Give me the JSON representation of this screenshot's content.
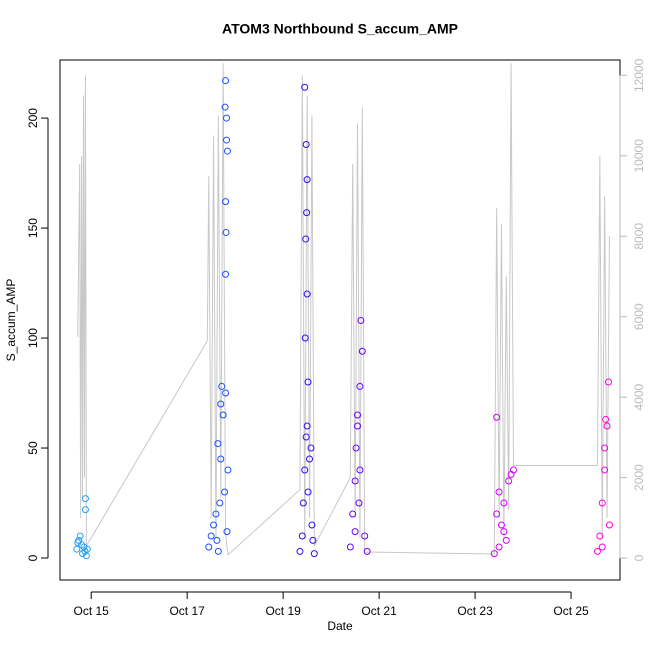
{
  "chart_data": {
    "type": "scatter",
    "title": "ATOM3 Northbound S_accum_AMP",
    "xlabel": "Date",
    "ylabel": "S_accum_AMP",
    "xlim": [
      14.35,
      26.02
    ],
    "xticks": [
      {
        "value": 15,
        "label": "Oct 15"
      },
      {
        "value": 17,
        "label": "Oct 17"
      },
      {
        "value": 19,
        "label": "Oct 19"
      },
      {
        "value": 21,
        "label": "Oct 21"
      },
      {
        "value": 23,
        "label": "Oct 23"
      },
      {
        "value": 25,
        "label": "Oct 25"
      }
    ],
    "ylim": [
      -10,
      226.4
    ],
    "yticks": [
      0,
      50,
      100,
      150,
      200
    ],
    "y2lim": [
      -545,
      12382
    ],
    "y2ticks": [
      0,
      2000,
      4000,
      6000,
      8000,
      10000,
      12000
    ],
    "series": [
      {
        "color": "#2aa0f0",
        "x": [
          14.7,
          14.74,
          14.77,
          14.8,
          14.82,
          14.85,
          14.87,
          14.88,
          14.88,
          14.9,
          14.92,
          14.72
        ],
        "values": [
          4,
          8,
          10,
          6,
          2,
          5,
          3,
          27,
          22,
          1,
          4,
          7
        ]
      },
      {
        "color": "#1c50ff",
        "x": [
          17.45,
          17.5,
          17.55,
          17.6,
          17.62,
          17.65,
          17.68,
          17.7,
          17.72,
          17.75,
          17.78,
          17.8,
          17.82,
          17.84,
          17.85,
          17.64,
          17.7,
          17.8,
          17.81,
          17.8,
          17.82,
          17.8,
          17.83,
          17.79
        ],
        "values": [
          5,
          10,
          15,
          20,
          8,
          3,
          25,
          45,
          78,
          65,
          30,
          217,
          200,
          185,
          40,
          52,
          70,
          129,
          148,
          162,
          190,
          75,
          12,
          205
        ]
      },
      {
        "color": "#2f10f0",
        "x": [
          19.35,
          19.4,
          19.42,
          19.45,
          19.48,
          19.5,
          19.52,
          19.55,
          19.58,
          19.6,
          19.62,
          19.65,
          19.45,
          19.48,
          19.5,
          19.47,
          19.5,
          19.46,
          19.52,
          19.49
        ],
        "values": [
          3,
          10,
          25,
          40,
          55,
          60,
          30,
          45,
          50,
          15,
          8,
          2,
          214,
          188,
          172,
          145,
          120,
          100,
          80,
          157
        ]
      },
      {
        "color": "#7000ff",
        "x": [
          20.4,
          20.45,
          20.5,
          20.52,
          20.55,
          20.58,
          20.6,
          20.62,
          20.65,
          20.7,
          20.75,
          20.6,
          20.55,
          20.5
        ],
        "values": [
          5,
          20,
          35,
          50,
          65,
          25,
          40,
          108,
          94,
          10,
          3,
          78,
          60,
          12
        ]
      },
      {
        "color": "#d400ff",
        "x": [
          23.4,
          23.45,
          23.5,
          23.55,
          23.6,
          23.65,
          23.7,
          23.75,
          23.8,
          23.45,
          23.5,
          23.6
        ],
        "values": [
          2,
          64,
          30,
          15,
          25,
          8,
          35,
          38,
          40,
          20,
          5,
          12
        ]
      },
      {
        "color": "#ff00e0",
        "x": [
          25.55,
          25.6,
          25.65,
          25.7,
          25.72,
          25.75,
          25.78,
          25.8,
          25.7,
          25.65
        ],
        "values": [
          3,
          10,
          25,
          40,
          63,
          60,
          80,
          15,
          50,
          5
        ]
      },
      {
        "color": "#c8c8c8",
        "type": "line",
        "axis": "y2",
        "x": [
          14.72,
          14.76,
          14.78,
          14.8,
          14.82,
          14.84,
          14.86,
          14.88,
          14.9,
          17.42,
          17.45,
          17.5,
          17.55,
          17.6,
          17.65,
          17.7,
          17.75,
          17.8,
          17.85,
          19.35,
          19.4,
          19.45,
          19.5,
          19.55,
          19.6,
          19.65,
          20.4,
          20.45,
          20.5,
          20.55,
          20.6,
          20.65,
          20.7,
          23.4,
          23.45,
          23.5,
          23.55,
          23.6,
          23.65,
          23.7,
          23.75,
          23.8,
          25.55,
          25.6,
          25.65,
          25.7,
          25.75,
          25.8
        ],
        "values": [
          5500,
          9800,
          1000,
          10000,
          1500,
          11500,
          2000,
          12000,
          300,
          5400,
          9500,
          1000,
          10500,
          500,
          11000,
          1500,
          12300,
          600,
          80,
          1700,
          12000,
          500,
          11500,
          1000,
          11000,
          300,
          2000,
          9800,
          1000,
          10800,
          500,
          11200,
          150,
          100,
          8700,
          1000,
          8300,
          500,
          7000,
          1200,
          12300,
          2300,
          2300,
          10000,
          500,
          9000,
          1000,
          8000
        ]
      }
    ]
  }
}
